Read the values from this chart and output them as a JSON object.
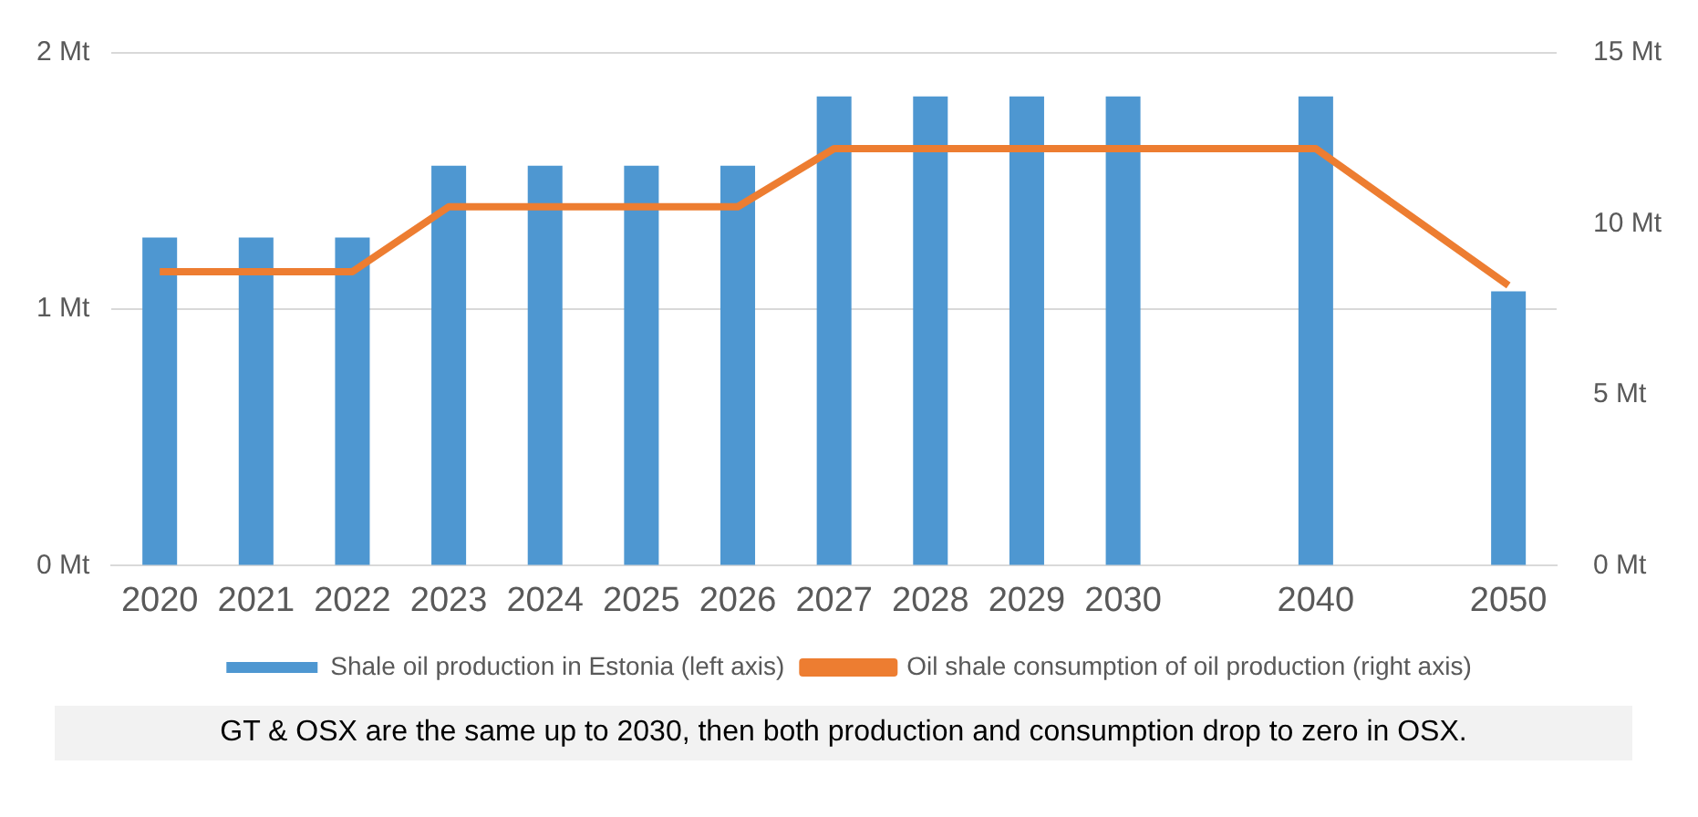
{
  "chart_data": {
    "type": "bar",
    "categories": [
      "2020",
      "2021",
      "2022",
      "2023",
      "2024",
      "2025",
      "2026",
      "2027",
      "2028",
      "2029",
      "2030",
      null,
      "2040",
      null,
      "2050"
    ],
    "series": [
      {
        "name": "Shale oil production in Estonia (left axis)",
        "color": "#4e97d1",
        "values": [
          1.28,
          1.28,
          1.28,
          1.56,
          1.56,
          1.56,
          1.56,
          1.83,
          1.83,
          1.83,
          1.83,
          null,
          1.83,
          null,
          1.07
        ]
      },
      {
        "name": "Oil shale consumption of oil production (right axis)",
        "type": "line",
        "axis": "y2",
        "color": "#ed7d31",
        "values": [
          8.6,
          8.6,
          8.6,
          10.5,
          10.5,
          10.5,
          10.5,
          12.2,
          12.2,
          12.2,
          12.2,
          null,
          12.2,
          null,
          8.2
        ]
      }
    ],
    "ylim": [
      0,
      2
    ],
    "yticks": [
      {
        "value": 0,
        "label": "0 Mt"
      },
      {
        "value": 1,
        "label": "1 Mt"
      },
      {
        "value": 2,
        "label": "2 Mt"
      }
    ],
    "y2lim": [
      0,
      15
    ],
    "y2ticks": [
      {
        "value": 0,
        "label": "0 Mt"
      },
      {
        "value": 5,
        "label": "5 Mt"
      },
      {
        "value": 10,
        "label": "10 Mt"
      },
      {
        "value": 15,
        "label": "15 Mt"
      }
    ],
    "grid": "y",
    "legend": "bottom",
    "marker": "none",
    "annotations": [
      "GT & OSX are the same up to 2030, then both production and consumption drop to zero in OSX."
    ]
  }
}
